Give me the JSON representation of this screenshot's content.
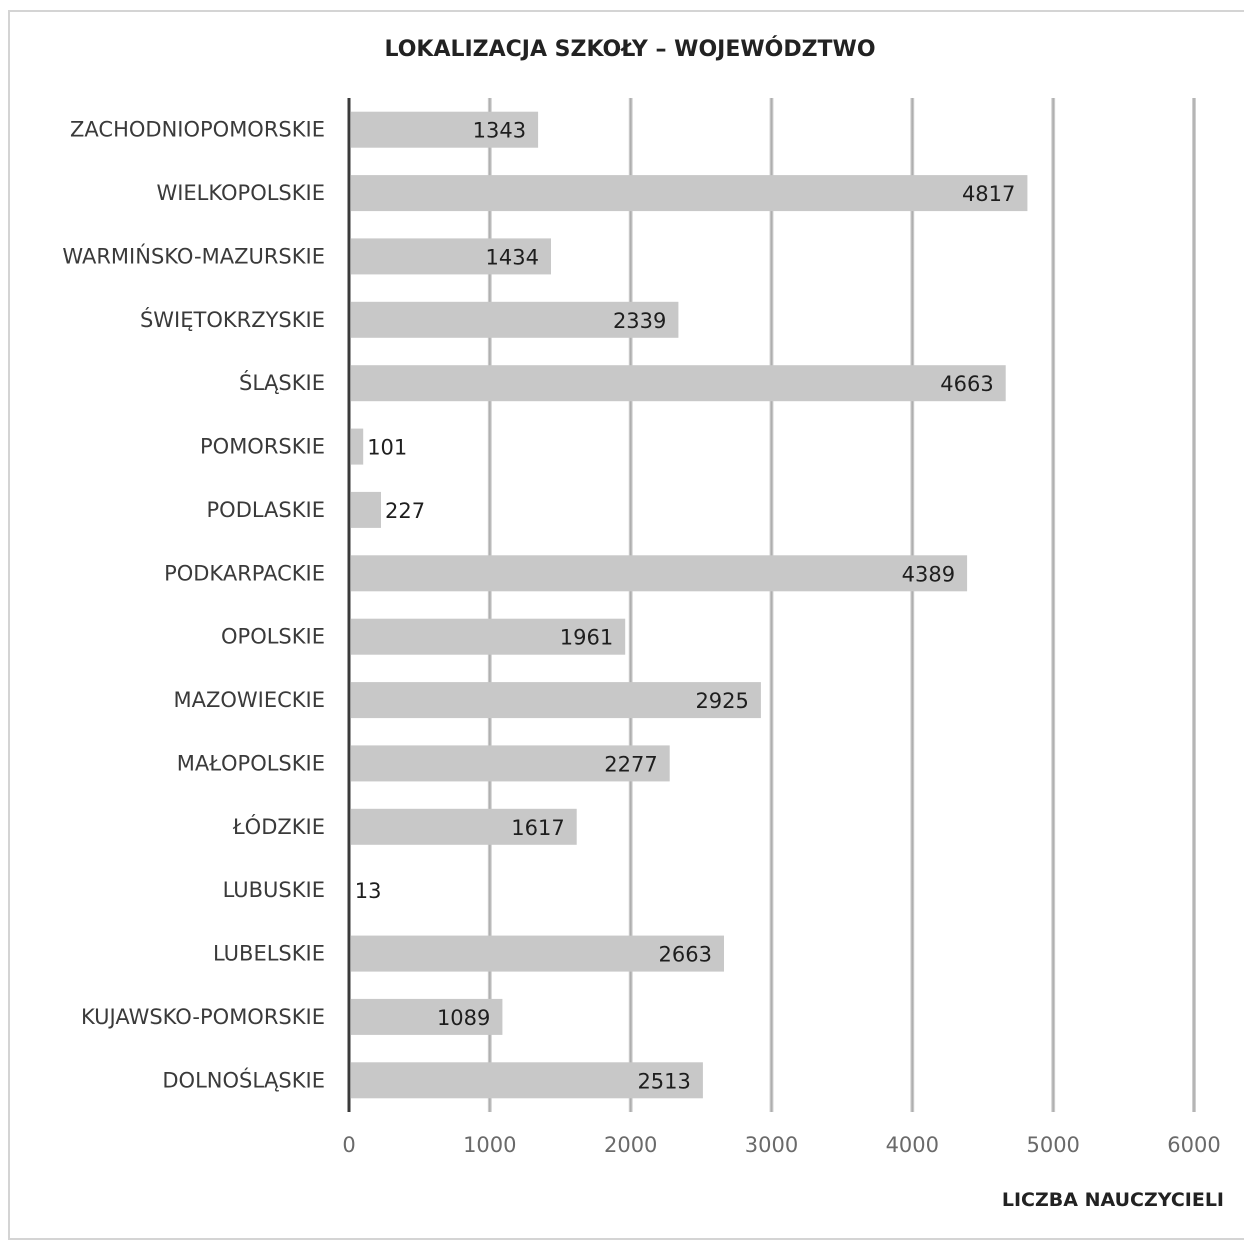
{
  "chart_data": {
    "type": "bar",
    "orientation": "horizontal",
    "title": "LOKALIZACJA SZKOŁY – WOJEWÓDZTWO",
    "xlabel": "LICZBA NAUCZYCIELI",
    "ylabel": "",
    "xlim": [
      0,
      6000
    ],
    "xticks": [
      "0",
      "1000",
      "2000",
      "3000",
      "4000",
      "5000",
      "6000"
    ],
    "grid": true,
    "colors": {
      "bar": "#c8c8c8",
      "grid": "#c4c4c4",
      "axis": "#3a3a3a"
    },
    "categories": [
      "ZACHODNIOPOMORSKIE",
      "WIELKOPOLSKIE",
      "WARMIŃSKO-MAZURSKIE",
      "ŚWIĘTOKRZYSKIE",
      "ŚLĄSKIE",
      "POMORSKIE",
      "PODLASKIE",
      "PODKARPACKIE",
      "OPOLSKIE",
      "MAZOWIECKIE",
      "MAŁOPOLSKIE",
      "ŁÓDZKIE",
      "LUBUSKIE",
      "LUBELSKIE",
      "KUJAWSKO-POMORSKIE",
      "DOLNOŚLĄSKIE"
    ],
    "values": [
      1343,
      4817,
      1434,
      2339,
      4663,
      101,
      227,
      4389,
      1961,
      2925,
      2277,
      1617,
      13,
      2663,
      1089,
      2513
    ],
    "data_labels": [
      "1343",
      "4817",
      "1434",
      "2339",
      "4663",
      "101",
      "227",
      "4389",
      "1961",
      "2925",
      "2277",
      "1617",
      "13",
      "2663",
      "1089",
      "2513"
    ]
  }
}
